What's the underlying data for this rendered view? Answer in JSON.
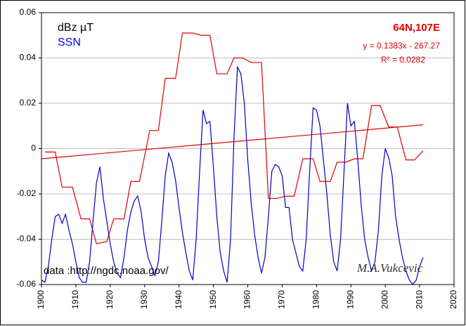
{
  "chart_data": {
    "type": "line",
    "legend_title_lines": [
      "dBz µT",
      "SSN"
    ],
    "location": "64N,107E",
    "equation": "y = 0.1383x - 267.27",
    "r2": "R² = 0.0282",
    "source": "data  :http://ngdc.noaa.gov/",
    "author": "M.A.Vukcevic",
    "xlim": [
      1900,
      2020
    ],
    "xticks": [
      1900,
      1910,
      1920,
      1930,
      1940,
      1950,
      1960,
      1970,
      1980,
      1990,
      2000,
      2010,
      2020
    ],
    "ylim": [
      -0.06,
      0.06
    ],
    "yticks": [
      0.06,
      0.04,
      0.02,
      0,
      -0.02,
      -0.04,
      -0.06
    ],
    "grid": true,
    "series": [
      {
        "name": "dBz µT",
        "color": "#e00000",
        "x": [
          1901,
          1904,
          1906,
          1909,
          1911.5,
          1914,
          1916,
          1919,
          1921,
          1924,
          1926,
          1928.5,
          1931.5,
          1934,
          1936,
          1939,
          1941,
          1944,
          1946.5,
          1949,
          1951,
          1954,
          1956,
          1958.5,
          1961,
          1964,
          1966,
          1968.5,
          1971,
          1973.5,
          1976,
          1979,
          1981,
          1984,
          1986,
          1988.5,
          1991,
          1993.5,
          1996,
          1998.5,
          2001,
          2003.5,
          2006,
          2008.5,
          2011
        ],
        "values": [
          -0.0015,
          -0.0015,
          -0.017,
          -0.017,
          -0.031,
          -0.031,
          -0.042,
          -0.041,
          -0.031,
          -0.031,
          -0.0145,
          -0.0145,
          0.008,
          0.008,
          0.031,
          0.031,
          0.051,
          0.051,
          0.05,
          0.05,
          0.033,
          0.033,
          0.04,
          0.04,
          0.038,
          0.038,
          -0.022,
          -0.022,
          -0.021,
          -0.021,
          -0.0045,
          -0.0045,
          -0.0145,
          -0.0145,
          -0.006,
          -0.006,
          -0.0045,
          -0.0045,
          0.019,
          0.019,
          0.0095,
          0.0095,
          -0.005,
          -0.005,
          -0.001
        ]
      },
      {
        "name": "SSN",
        "color": "#0000c8",
        "x": [
          1900,
          1901,
          1902,
          1903,
          1904,
          1905,
          1906,
          1907,
          1908,
          1909,
          1910,
          1911,
          1912,
          1913,
          1914,
          1915,
          1916,
          1917,
          1918,
          1919,
          1920,
          1921,
          1922,
          1923,
          1924,
          1925,
          1926,
          1927,
          1928,
          1929,
          1930,
          1931,
          1932,
          1933,
          1934,
          1935,
          1936,
          1937,
          1938,
          1939,
          1940,
          1941,
          1942,
          1943,
          1944,
          1945,
          1946,
          1947,
          1948,
          1949,
          1950,
          1951,
          1952,
          1953,
          1954,
          1955,
          1956,
          1957,
          1958,
          1959,
          1960,
          1961,
          1962,
          1963,
          1964,
          1965,
          1966,
          1967,
          1968,
          1969,
          1970,
          1971,
          1972,
          1973,
          1974,
          1975,
          1976,
          1977,
          1978,
          1979,
          1980,
          1981,
          1982,
          1983,
          1984,
          1985,
          1986,
          1987,
          1988,
          1989,
          1990,
          1991,
          1992,
          1993,
          1994,
          1995,
          1996,
          1997,
          1998,
          1999,
          2000,
          2001,
          2002,
          2003,
          2004,
          2005,
          2006,
          2007,
          2008,
          2009,
          2010,
          2011
        ],
        "values": [
          -0.058,
          -0.059,
          -0.052,
          -0.04,
          -0.03,
          -0.029,
          -0.033,
          -0.029,
          -0.036,
          -0.042,
          -0.05,
          -0.057,
          -0.059,
          -0.059,
          -0.05,
          -0.032,
          -0.015,
          -0.008,
          -0.022,
          -0.032,
          -0.042,
          -0.05,
          -0.055,
          -0.057,
          -0.048,
          -0.036,
          -0.028,
          -0.023,
          -0.021,
          -0.028,
          -0.04,
          -0.048,
          -0.052,
          -0.056,
          -0.05,
          -0.032,
          -0.012,
          -0.002,
          -0.006,
          -0.014,
          -0.026,
          -0.037,
          -0.046,
          -0.054,
          -0.058,
          -0.04,
          -0.01,
          0.017,
          0.011,
          0.012,
          -0.008,
          -0.03,
          -0.046,
          -0.054,
          -0.059,
          -0.04,
          0.005,
          0.036,
          0.033,
          0.02,
          -0.005,
          -0.024,
          -0.038,
          -0.048,
          -0.055,
          -0.048,
          -0.03,
          -0.01,
          -0.007,
          -0.008,
          -0.012,
          -0.026,
          -0.026,
          -0.04,
          -0.046,
          -0.052,
          -0.054,
          -0.04,
          -0.01,
          0.018,
          0.017,
          0.01,
          -0.005,
          -0.02,
          -0.038,
          -0.05,
          -0.054,
          -0.04,
          -0.01,
          0.02,
          0.01,
          0.012,
          -0.005,
          -0.025,
          -0.04,
          -0.048,
          -0.054,
          -0.05,
          -0.036,
          -0.012,
          0,
          -0.004,
          -0.012,
          -0.03,
          -0.04,
          -0.048,
          -0.054,
          -0.058,
          -0.06,
          -0.058,
          -0.052,
          -0.048
        ]
      }
    ],
    "trendline": {
      "color": "#e00000",
      "x": [
        1900,
        2011
      ],
      "values": [
        -0.0045,
        0.0105
      ]
    }
  }
}
